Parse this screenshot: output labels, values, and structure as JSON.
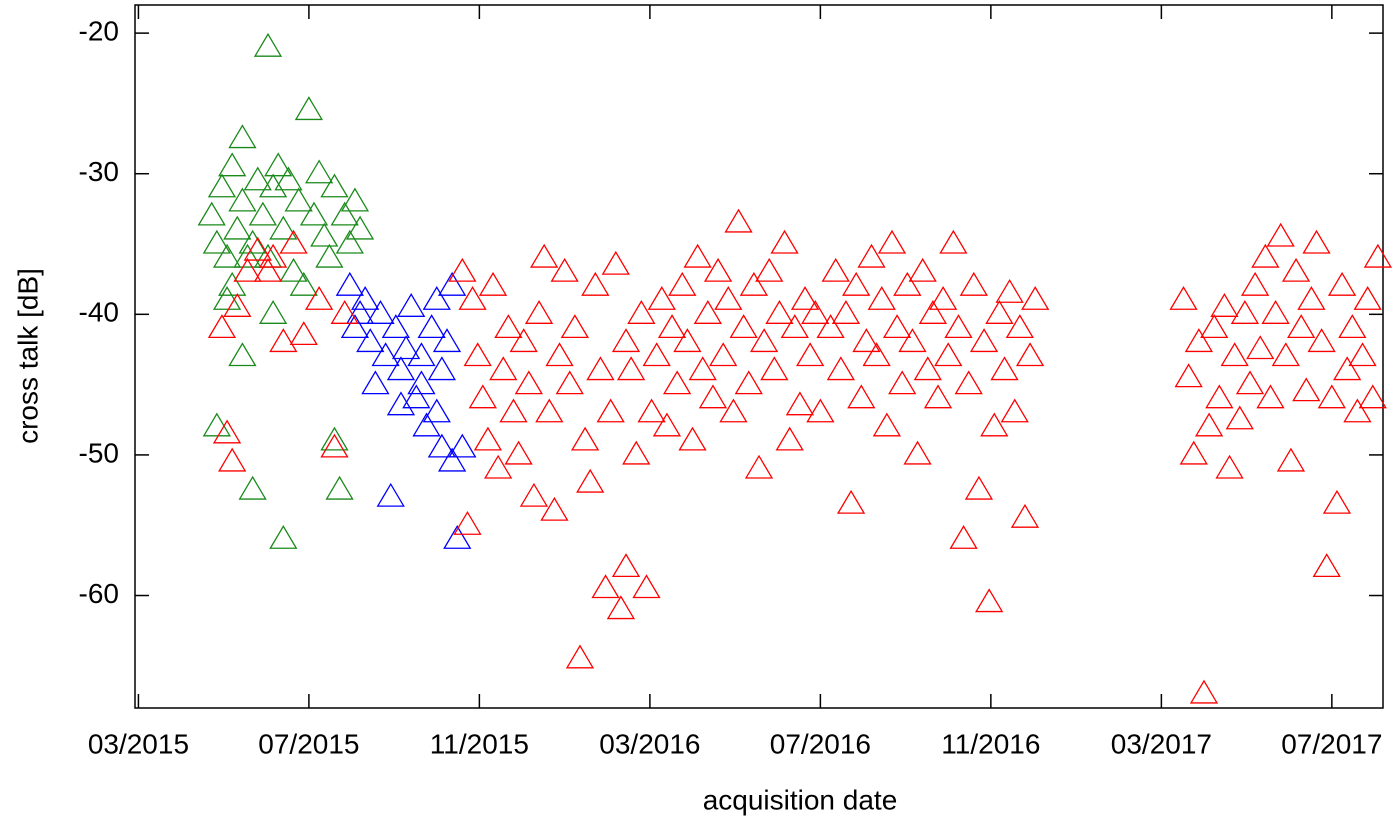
{
  "chart_data": {
    "type": "scatter",
    "x_label": "acquisition date",
    "y_label": "cross talk [dB]",
    "xlim": [
      2015.16,
      2017.6
    ],
    "ylim": [
      -68,
      -18
    ],
    "xticks": [
      {
        "value": 2015.1667,
        "label": "03/2015"
      },
      {
        "value": 2015.5,
        "label": "07/2015"
      },
      {
        "value": 2015.8333,
        "label": "11/2015"
      },
      {
        "value": 2016.1667,
        "label": "03/2016"
      },
      {
        "value": 2016.5,
        "label": "07/2016"
      },
      {
        "value": 2016.8333,
        "label": "11/2016"
      },
      {
        "value": 2017.1667,
        "label": "03/2017"
      },
      {
        "value": 2017.5,
        "label": "07/2017"
      }
    ],
    "yticks": [
      -20,
      -30,
      -40,
      -50,
      -60
    ],
    "series": [
      {
        "color": "#1a8a1a",
        "x": [
          2015.31,
          2015.32,
          2015.32,
          2015.33,
          2015.34,
          2015.35,
          2015.35,
          2015.36,
          2015.37,
          2015.37,
          2015.38,
          2015.39,
          2015.39,
          2015.4,
          2015.41,
          2015.42,
          2015.42,
          2015.43,
          2015.44,
          2015.45,
          2015.45,
          2015.46,
          2015.47,
          2015.48,
          2015.49,
          2015.5,
          2015.51,
          2015.52,
          2015.53,
          2015.54,
          2015.55,
          2015.55,
          2015.56,
          2015.57,
          2015.58,
          2015.59,
          2015.6,
          2015.43,
          2015.37,
          2015.34
        ],
        "values": [
          -33,
          -35,
          -48,
          -31,
          -36,
          -29.5,
          -38,
          -34,
          -27.5,
          -32,
          -36,
          -52.5,
          -35,
          -30.5,
          -33,
          -21,
          -36,
          -31,
          -29.5,
          -56,
          -34,
          -30.5,
          -37,
          -32,
          -38,
          -25.5,
          -33,
          -30,
          -34.5,
          -36,
          -31,
          -49,
          -52.5,
          -33,
          -35,
          -32,
          -34,
          -40,
          -43,
          -39
        ]
      },
      {
        "color": "#0000ff",
        "x": [
          2015.58,
          2015.59,
          2015.6,
          2015.61,
          2015.62,
          2015.63,
          2015.64,
          2015.65,
          2015.66,
          2015.67,
          2015.68,
          2015.69,
          2015.7,
          2015.71,
          2015.72,
          2015.73,
          2015.74,
          2015.75,
          2015.76,
          2015.76,
          2015.77,
          2015.78,
          2015.78,
          2015.79,
          2015.8,
          2015.72,
          2015.68,
          2015.75
        ],
        "values": [
          -38,
          -41,
          -40,
          -39,
          -42,
          -45,
          -40,
          -43,
          -53,
          -41,
          -44,
          -42.5,
          -39.5,
          -46,
          -43,
          -48,
          -41,
          -47,
          -49.5,
          -44,
          -42,
          -38,
          -50.5,
          -56,
          -49.5,
          -45,
          -46.5,
          -39
        ]
      },
      {
        "color": "#ff0000",
        "x": [
          2015.33,
          2015.34,
          2015.35,
          2015.38,
          2015.4,
          2015.42,
          2015.43,
          2015.45,
          2015.47,
          2015.49,
          2015.52,
          2015.55,
          2015.57,
          2015.36,
          2015.8,
          2015.81,
          2015.82,
          2015.83,
          2015.84,
          2015.85,
          2015.86,
          2015.87,
          2015.88,
          2015.89,
          2015.9,
          2015.91,
          2015.92,
          2015.93,
          2015.94,
          2015.95,
          2015.96,
          2015.97,
          2015.98,
          2015.99,
          2016.0,
          2016.01,
          2016.02,
          2016.03,
          2016.04,
          2016.05,
          2016.06,
          2016.07,
          2016.08,
          2016.09,
          2016.1,
          2016.11,
          2016.12,
          2016.12,
          2016.13,
          2016.14,
          2016.15,
          2016.16,
          2016.17,
          2016.18,
          2016.19,
          2016.2,
          2016.21,
          2016.22,
          2016.23,
          2016.24,
          2016.25,
          2016.26,
          2016.27,
          2016.28,
          2016.29,
          2016.3,
          2016.31,
          2016.32,
          2016.33,
          2016.34,
          2016.35,
          2016.36,
          2016.37,
          2016.38,
          2016.39,
          2016.4,
          2016.41,
          2016.42,
          2016.43,
          2016.44,
          2016.45,
          2016.46,
          2016.47,
          2016.48,
          2016.49,
          2016.5,
          2016.52,
          2016.53,
          2016.54,
          2016.55,
          2016.56,
          2016.57,
          2016.58,
          2016.59,
          2016.6,
          2016.61,
          2016.62,
          2016.63,
          2016.64,
          2016.65,
          2016.66,
          2016.67,
          2016.68,
          2016.69,
          2016.7,
          2016.71,
          2016.72,
          2016.73,
          2016.74,
          2016.75,
          2016.76,
          2016.77,
          2016.78,
          2016.79,
          2016.8,
          2016.81,
          2016.82,
          2016.83,
          2016.84,
          2016.85,
          2016.86,
          2016.87,
          2016.88,
          2016.89,
          2016.9,
          2016.91,
          2016.92,
          2017.21,
          2017.22,
          2017.23,
          2017.24,
          2017.25,
          2017.26,
          2017.27,
          2017.28,
          2017.29,
          2017.3,
          2017.31,
          2017.32,
          2017.33,
          2017.34,
          2017.35,
          2017.36,
          2017.37,
          2017.38,
          2017.39,
          2017.4,
          2017.41,
          2017.42,
          2017.43,
          2017.44,
          2017.45,
          2017.46,
          2017.47,
          2017.48,
          2017.49,
          2017.5,
          2017.51,
          2017.52,
          2017.53,
          2017.54,
          2017.55,
          2017.56,
          2017.57,
          2017.58,
          2017.59
        ],
        "values": [
          -41,
          -48.5,
          -50.5,
          -37,
          -35.5,
          -37,
          -36,
          -42,
          -35,
          -41.5,
          -39,
          -49.5,
          -40,
          -39.5,
          -37,
          -55,
          -39,
          -43,
          -46,
          -49,
          -38,
          -51,
          -44,
          -41,
          -47,
          -50,
          -42,
          -45,
          -53,
          -40,
          -36,
          -47,
          -54,
          -43,
          -37,
          -45,
          -41,
          -64.5,
          -49,
          -52,
          -38,
          -44,
          -59.5,
          -47,
          -36.5,
          -61,
          -58,
          -42,
          -44,
          -50,
          -40,
          -59.5,
          -47,
          -43,
          -39,
          -48,
          -41,
          -45,
          -38,
          -42,
          -49,
          -36,
          -44,
          -40,
          -46,
          -37,
          -43,
          -39,
          -47,
          -33.5,
          -41,
          -45,
          -38,
          -51,
          -42,
          -37,
          -44,
          -40,
          -35,
          -49,
          -41,
          -46.5,
          -39,
          -43,
          -40,
          -47,
          -41,
          -37,
          -44,
          -40,
          -53.5,
          -38,
          -46,
          -42,
          -36,
          -43,
          -39,
          -48,
          -35,
          -41,
          -45,
          -38,
          -42,
          -50,
          -37,
          -44,
          -40,
          -46,
          -39,
          -43,
          -35,
          -41,
          -56,
          -45,
          -38,
          -52.5,
          -42,
          -60.5,
          -48,
          -40,
          -44,
          -38.5,
          -47,
          -41,
          -54.5,
          -43,
          -39,
          -39,
          -44.5,
          -50,
          -42,
          -67,
          -48,
          -41,
          -46,
          -39.5,
          -51,
          -43,
          -47.5,
          -40,
          -45,
          -38,
          -42.5,
          -36,
          -46,
          -40,
          -34.5,
          -43,
          -50.5,
          -37,
          -41,
          -45.5,
          -39,
          -35,
          -42,
          -58,
          -46,
          -53.5,
          -38,
          -44,
          -41,
          -47,
          -43,
          -39,
          -46,
          -36
        ]
      }
    ]
  }
}
